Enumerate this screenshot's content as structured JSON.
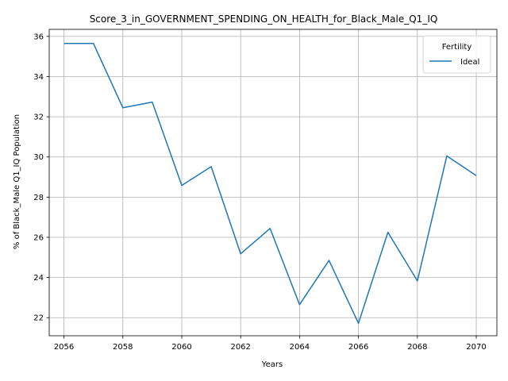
{
  "chart_data": {
    "type": "line",
    "title": "Score_3_in_GOVERNMENT_SPENDING_ON_HEALTH_for_Black_Male_Q1_IQ",
    "xlabel": "Years",
    "ylabel": "% of Black_Male Q1_IQ Population",
    "xlim": [
      2055.5,
      2070.7
    ],
    "ylim": [
      21.1,
      36.35
    ],
    "x_ticks": [
      2056,
      2058,
      2060,
      2062,
      2064,
      2066,
      2068,
      2070
    ],
    "y_ticks": [
      22,
      24,
      26,
      28,
      30,
      32,
      34,
      36
    ],
    "grid": true,
    "legend": {
      "title": "Fertility",
      "placement": "top-right"
    },
    "series": [
      {
        "name": "Ideal",
        "color": "#1f77b4",
        "x": [
          2056,
          2057,
          2058,
          2059,
          2060,
          2061,
          2062,
          2063,
          2064,
          2065,
          2066,
          2067,
          2068,
          2069,
          2070
        ],
        "y": [
          35.65,
          35.65,
          32.45,
          32.73,
          28.58,
          29.52,
          25.18,
          26.44,
          22.65,
          24.85,
          21.72,
          26.25,
          23.83,
          30.05,
          29.07
        ]
      }
    ]
  }
}
